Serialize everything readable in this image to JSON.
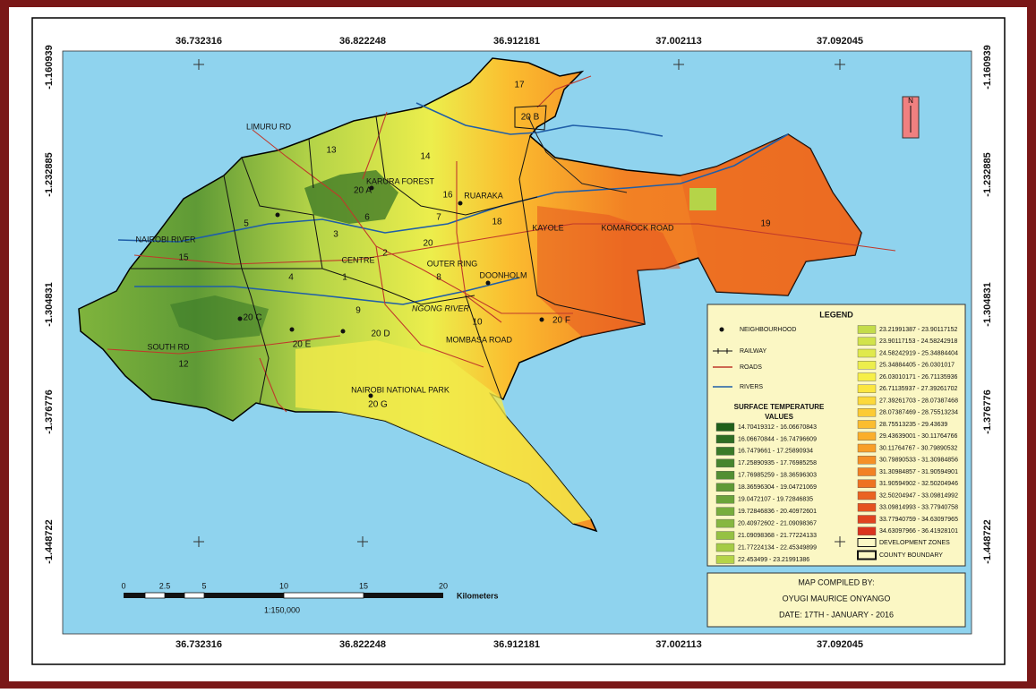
{
  "frame_coordinates": {
    "longitudes": [
      "36.732316",
      "36.822248",
      "36.912181",
      "37.002113",
      "37.092045"
    ],
    "latitudes": [
      "-1.160939",
      "-1.232885",
      "-1.304831",
      "-1.376776",
      "-1.448722"
    ]
  },
  "map_labels": [
    "17",
    "20 B",
    "LIMURU RD",
    "13",
    "14",
    "KARURA FOREST",
    "20 A",
    "16",
    "RUARAKA",
    "5",
    "6",
    "7",
    "18",
    "KAYOLE",
    "19",
    "3",
    "20",
    "NAIROBI RIVER",
    "15",
    "2",
    "CENTRE",
    "4",
    "1",
    "8",
    "DOONHOLM",
    "OUTER RING",
    "KOMAROCK ROAD",
    "NGONG RIVER",
    "9",
    "20 C",
    "10",
    "20 F",
    "20 E",
    "20 D",
    "MOMBASA ROAD",
    "SOUTH RD",
    "12",
    "NAIROBI NATIONAL PARK",
    "20 G"
  ],
  "north_arrow": "N",
  "legend": {
    "title": "LEGEND",
    "symbols": [
      "NEIGHBOURHOOD",
      "RAILWAY",
      "ROADS",
      "RIVERS"
    ],
    "temperature_title": [
      "SURFACE TEMPERATURE",
      "VALUES"
    ],
    "classes": [
      {
        "range": "14.70419312 - 16.06670843",
        "color": "#1f5f1a"
      },
      {
        "range": "16.06670844 - 16.74796609",
        "color": "#2e6e22"
      },
      {
        "range": "16.7479661 - 17.25890934",
        "color": "#3a7a28"
      },
      {
        "range": "17.25890935 - 17.76985258",
        "color": "#46852d"
      },
      {
        "range": "17.76985259 - 18.36596303",
        "color": "#528f32"
      },
      {
        "range": "18.36596304 - 19.04721069",
        "color": "#5f9a36"
      },
      {
        "range": "19.0472107 - 19.72846835",
        "color": "#6ba43a"
      },
      {
        "range": "19.72846836 - 20.40972601",
        "color": "#78ad3d"
      },
      {
        "range": "20.40972602 - 21.09098367",
        "color": "#86b740"
      },
      {
        "range": "21.09098368 - 21.77224133",
        "color": "#95c143"
      },
      {
        "range": "21.77224134 - 22.45349899",
        "color": "#a5cb45"
      },
      {
        "range": "22.453499 - 23.21991386",
        "color": "#b5d448"
      },
      {
        "range": "23.21991387 - 23.90117152",
        "color": "#c4dc4a"
      },
      {
        "range": "23.90117153 - 24.58242918",
        "color": "#d2e34b"
      },
      {
        "range": "24.58242919 - 25.34884404",
        "color": "#e0e94c"
      },
      {
        "range": "25.34884405 - 26.0301017",
        "color": "#ecee4c"
      },
      {
        "range": "26.03010171 - 26.71135936",
        "color": "#f6ef48"
      },
      {
        "range": "26.71135937 - 27.39261702",
        "color": "#fbe640"
      },
      {
        "range": "27.39261703 - 28.07387468",
        "color": "#fcd93a"
      },
      {
        "range": "28.07387469 - 28.75513234",
        "color": "#fccb34"
      },
      {
        "range": "28.75513235 - 29.43639",
        "color": "#fbbd2f"
      },
      {
        "range": "29.43639001 - 30.11764766",
        "color": "#faae2b"
      },
      {
        "range": "30.11764767 - 30.79890532",
        "color": "#f89f28"
      },
      {
        "range": "30.79890533 - 31.30984856",
        "color": "#f59026"
      },
      {
        "range": "31.30984857 - 31.90594901",
        "color": "#f28124"
      },
      {
        "range": "31.90594902 - 32.50204946",
        "color": "#ee7222"
      },
      {
        "range": "32.50204947 - 33.09814992",
        "color": "#ea6321"
      },
      {
        "range": "33.09814993 - 33.77940758",
        "color": "#e55320"
      },
      {
        "range": "33.77940759 - 34.63097965",
        "color": "#e0431f"
      },
      {
        "range": "34.63097966 - 36.41928101",
        "color": "#da331e"
      }
    ],
    "boundaries": [
      "DEVELOPMENT ZONES",
      "COUNTY BOUNDARY"
    ]
  },
  "scale_bar": {
    "ticks": [
      "0",
      "2.5",
      "5",
      "10",
      "15",
      "20"
    ],
    "unit": "Kilometers",
    "ratio": "1:150,000"
  },
  "credits": {
    "heading": "MAP COMPILED BY:",
    "author": "OYUGI MAURICE ONYANGO",
    "date": "DATE:  17TH - JANUARY - 2016"
  }
}
